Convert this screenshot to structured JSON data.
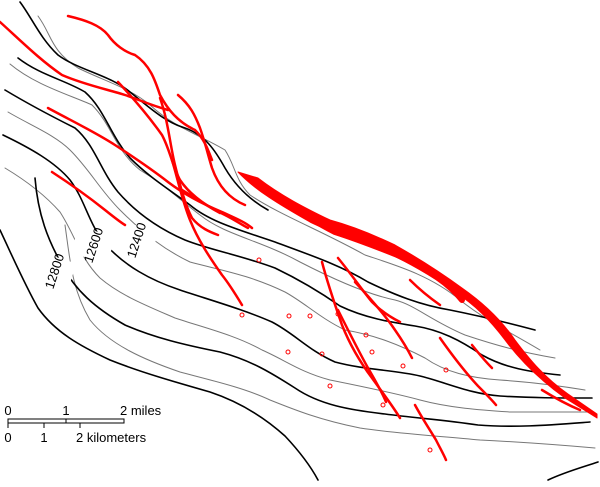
{
  "contour_labels": {
    "c12400": "12400",
    "c12600": "12600",
    "c12800": "12800"
  },
  "scale_bar": {
    "miles": {
      "tick_0": "0",
      "tick_1": "1",
      "tick_2": "2 miles"
    },
    "kilometers": {
      "tick_0": "0",
      "tick_1": "1",
      "tick_2": "2 kilometers"
    }
  },
  "colors": {
    "index_contour": "#000000",
    "intermediate_contour": "#777777",
    "fault": "#ff0000",
    "well": "#ff0000",
    "background": "#ffffff"
  }
}
